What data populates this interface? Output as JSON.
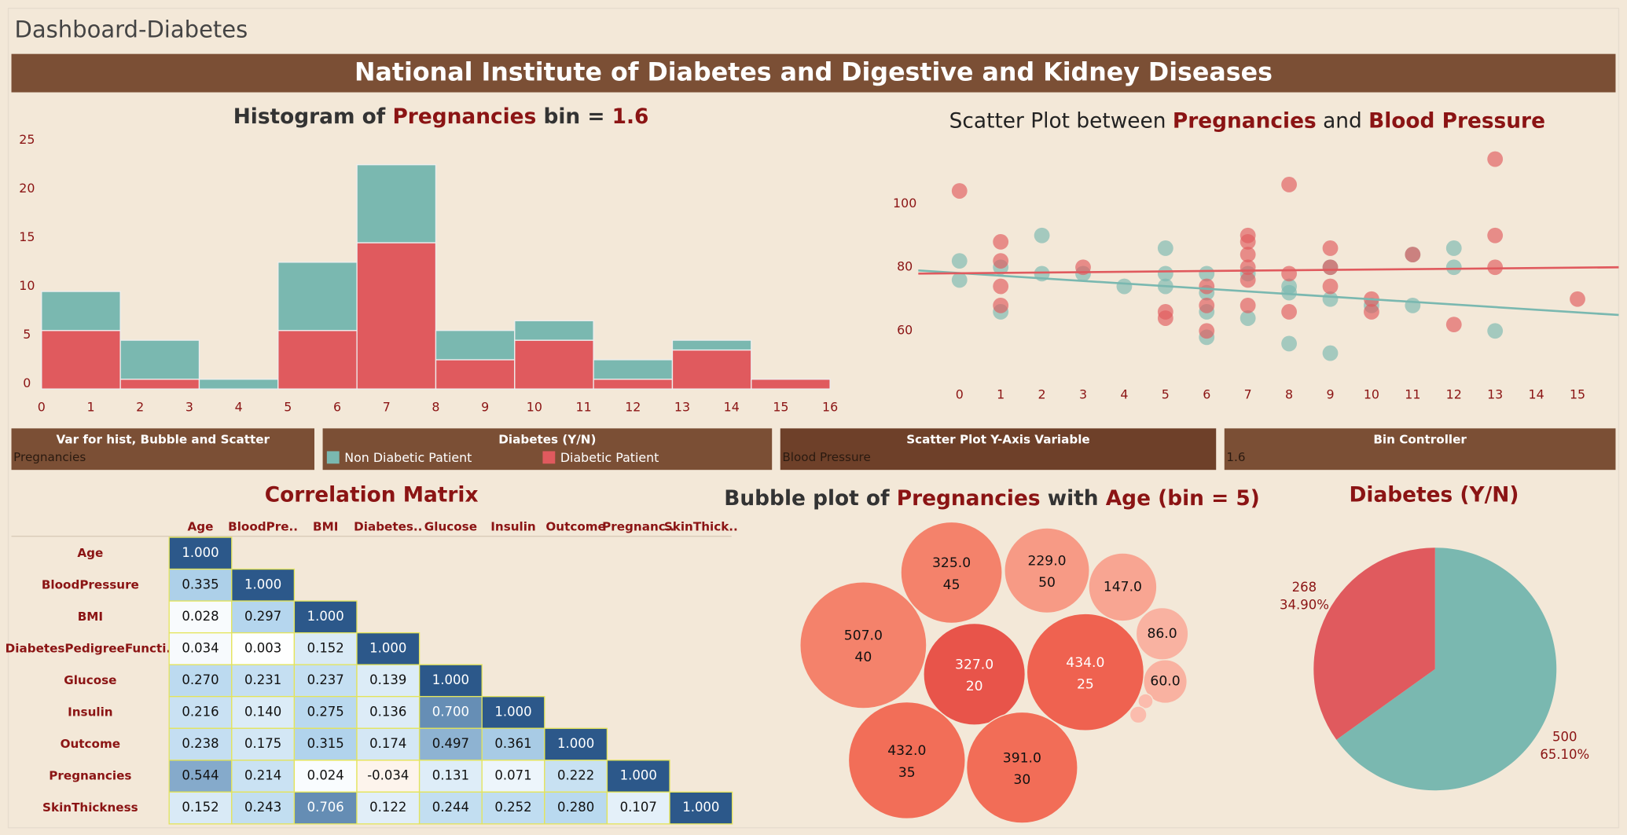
{
  "header": {
    "dashboard_title": "Dashboard-Diabetes",
    "banner": "National Institute of Diabetes and Digestive and Kidney Diseases"
  },
  "controls": [
    {
      "title": "Var for hist, Bubble and Scatter",
      "value": "Pregnancies"
    },
    {
      "title": "Diabetes (Y/N)"
    },
    {
      "title": "Scatter Plot Y-Axis Variable",
      "value": "Blood Pressure"
    },
    {
      "title": "Bin Controller",
      "value": "1.6"
    }
  ],
  "chart_data": [
    {
      "type": "histogram",
      "title": [
        {
          "text": "Histogram of ",
          "color": "#333333"
        },
        {
          "text": "Pregnancies",
          "color": "#8b1414"
        },
        {
          "text": " bin = ",
          "color": "#333333"
        },
        {
          "text": "1.6",
          "color": "#8b1414"
        }
      ],
      "bins": [
        0,
        1.6,
        3.2,
        4.8,
        6.4,
        8,
        9.6,
        11.2,
        12.8,
        14.4,
        16
      ],
      "series": [
        {
          "name": "Non Diabetic Patient",
          "color": "#7ab8b0",
          "values": [
            4,
            4,
            1,
            7,
            8,
            3,
            2,
            2,
            1,
            0
          ]
        },
        {
          "name": "Diabetic Patient",
          "color": "#e05a5e",
          "values": [
            6,
            1,
            0,
            6,
            15,
            3,
            5,
            1,
            4,
            1
          ]
        }
      ],
      "xlim": [
        0,
        16
      ],
      "xticks": [
        0,
        1,
        2,
        3,
        4,
        5,
        6,
        7,
        8,
        9,
        10,
        11,
        12,
        13,
        14,
        15,
        16
      ],
      "ylim": [
        0,
        25
      ],
      "yticks": [
        0,
        5,
        10,
        15,
        20,
        25
      ]
    },
    {
      "type": "scatter",
      "title": [
        {
          "text": "Scatter Plot between ",
          "color": "#222222",
          "bold": false
        },
        {
          "text": "Pregnancies",
          "color": "#8b1414",
          "bold": true
        },
        {
          "text": " and ",
          "color": "#222222",
          "bold": false
        },
        {
          "text": "Blood Pressure",
          "color": "#8b1414",
          "bold": true
        }
      ],
      "series": [
        {
          "name": "Non Diabetic Patient",
          "color": "#7ab8b0",
          "x": [
            0,
            0,
            1,
            1,
            2,
            2,
            3,
            4,
            5,
            5,
            5,
            6,
            6,
            6,
            6,
            7,
            7,
            8,
            8,
            8,
            9,
            9,
            9,
            10,
            11,
            11,
            12,
            12,
            13
          ],
          "values": [
            82,
            76,
            80,
            66,
            90,
            78,
            78,
            74,
            86,
            78,
            74,
            78,
            72,
            66,
            58,
            78,
            64,
            74,
            72,
            56,
            80,
            70,
            53,
            68,
            84,
            68,
            86,
            80,
            60
          ],
          "trend": [
            79,
            65
          ]
        },
        {
          "name": "Diabetic Patient",
          "color": "#e05a5e",
          "x": [
            0,
            1,
            1,
            1,
            1,
            3,
            5,
            5,
            6,
            6,
            6,
            7,
            7,
            7,
            7,
            7,
            7,
            8,
            8,
            8,
            9,
            9,
            9,
            10,
            10,
            11,
            12,
            13,
            13,
            13,
            15
          ],
          "values": [
            104,
            88,
            82,
            74,
            68,
            80,
            64,
            66,
            74,
            68,
            60,
            90,
            88,
            84,
            80,
            76,
            68,
            106,
            78,
            66,
            86,
            80,
            74,
            70,
            66,
            84,
            62,
            114,
            90,
            80,
            70
          ],
          "trend": [
            78,
            80
          ]
        }
      ],
      "xlim": [
        -1,
        16
      ],
      "xticks": [
        0,
        1,
        2,
        3,
        4,
        5,
        6,
        7,
        8,
        9,
        10,
        11,
        12,
        13,
        14,
        15
      ],
      "ylim": [
        45,
        120
      ],
      "yticks": [
        60,
        80,
        100
      ]
    },
    {
      "type": "heatmap",
      "title": "Correlation Matrix",
      "columns": [
        "Age",
        "BloodPre..",
        "BMI",
        "Diabetes..",
        "Glucose",
        "Insulin",
        "Outcome",
        "Pregnanc..",
        "SkinThick.."
      ],
      "rows": [
        "Age",
        "BloodPressure",
        "BMI",
        "DiabetesPedigreeFuncti..",
        "Glucose",
        "Insulin",
        "Outcome",
        "Pregnancies",
        "SkinThickness"
      ],
      "values": [
        [
          1,
          null,
          null,
          null,
          null,
          null,
          null,
          null,
          null
        ],
        [
          0.335,
          1,
          null,
          null,
          null,
          null,
          null,
          null,
          null
        ],
        [
          0.028,
          0.297,
          1,
          null,
          null,
          null,
          null,
          null,
          null
        ],
        [
          0.034,
          0.003,
          0.152,
          1,
          null,
          null,
          null,
          null,
          null
        ],
        [
          0.27,
          0.231,
          0.237,
          0.139,
          1,
          null,
          null,
          null,
          null
        ],
        [
          0.216,
          0.14,
          0.275,
          0.136,
          0.7,
          1,
          null,
          null,
          null
        ],
        [
          0.238,
          0.175,
          0.315,
          0.174,
          0.497,
          0.361,
          1,
          null,
          null
        ],
        [
          0.544,
          0.214,
          0.024,
          -0.034,
          0.131,
          0.071,
          0.222,
          1,
          null
        ],
        [
          0.152,
          0.243,
          0.706,
          0.122,
          0.244,
          0.252,
          0.28,
          0.107,
          1
        ]
      ],
      "value_labels": [
        [
          "1.000",
          null,
          null,
          null,
          null,
          null,
          null,
          null,
          null
        ],
        [
          "0.335",
          "1.000",
          null,
          null,
          null,
          null,
          null,
          null,
          null
        ],
        [
          "0.028",
          "0.297",
          "1.000",
          null,
          null,
          null,
          null,
          null,
          null
        ],
        [
          "0.034",
          "0.003",
          "0.152",
          "1.000",
          null,
          null,
          null,
          null,
          null
        ],
        [
          "0.270",
          "0.231",
          "0.237",
          "0.139",
          "1.000",
          null,
          null,
          null,
          null
        ],
        [
          "0.216",
          "0.140",
          "0.275",
          "0.136",
          "0.700",
          "1.000",
          null,
          null,
          null
        ],
        [
          "0.238",
          "0.175",
          "0.315",
          "0.174",
          "0.497",
          "0.361",
          "1.000",
          null,
          null
        ],
        [
          "0.544",
          "0.214",
          "0.024",
          "-0.034",
          "0.131",
          "0.071",
          "0.222",
          "1.000",
          null
        ],
        [
          "0.152",
          "0.243",
          "0.706",
          "0.122",
          "0.244",
          "0.252",
          "0.280",
          "0.107",
          "1.000"
        ]
      ]
    },
    {
      "type": "bubble",
      "title": [
        {
          "text": "Bubble plot of ",
          "color": "#333333"
        },
        {
          "text": "Pregnancies",
          "color": "#8b1414"
        },
        {
          "text": " with ",
          "color": "#333333"
        },
        {
          "text": "Age (bin = 5)",
          "color": "#8b1414"
        }
      ],
      "categories": [
        "40",
        "45",
        "50",
        null,
        null,
        null,
        "20",
        "25",
        "35",
        "30",
        null,
        null
      ],
      "values": [
        507,
        325,
        229,
        147,
        86,
        60,
        327,
        434,
        432,
        391,
        7,
        9
      ],
      "value_labels": [
        "507.0",
        "325.0",
        "229.0",
        "147.0",
        "86.0",
        "60.0",
        "327.0",
        "434.0",
        "432.0",
        "391.0",
        null,
        null
      ],
      "colors": [
        "#f4826b",
        "#f4826b",
        "#f79a85",
        "#f8a592",
        "#f9b2a1",
        "#f9b2a1",
        "#e8544a",
        "#ef6250",
        "#f26e58",
        "#f26d57",
        "#fbbcad",
        "#fbbcad"
      ]
    },
    {
      "type": "pie",
      "title": "Diabetes (Y/N)",
      "values": [
        500,
        268
      ],
      "percents": [
        65.1,
        34.9
      ],
      "percent_labels": [
        "65.10%",
        "34.90%"
      ],
      "colors": [
        "#7ab8b0",
        "#e05a5e"
      ]
    }
  ]
}
